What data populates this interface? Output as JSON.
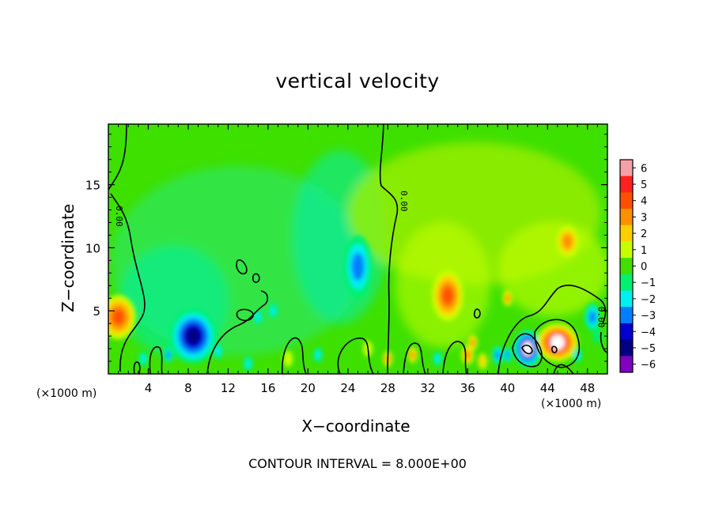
{
  "chart_data": {
    "type": "heatmap",
    "title": "vertical velocity",
    "xlabel": "X−coordinate",
    "ylabel": "Z−coordinate",
    "x_unit_note": "(×1000 m)",
    "x_unit_note_right": "(×1000 m)",
    "contour_note": "CONTOUR INTERVAL = 8.000E+00",
    "xlim": [
      0,
      50
    ],
    "ylim": [
      0,
      19.8
    ],
    "x_ticks": [
      "4",
      "8",
      "12",
      "16",
      "20",
      "24",
      "28",
      "32",
      "36",
      "40",
      "44",
      "48"
    ],
    "x_tick_values": [
      4,
      8,
      12,
      16,
      20,
      24,
      28,
      32,
      36,
      40,
      44,
      48
    ],
    "y_ticks": [
      "5",
      "10",
      "15"
    ],
    "y_tick_values": [
      5,
      10,
      15
    ],
    "contour_labels": [
      "0.00",
      "0.00",
      "0.00"
    ],
    "colorbar": {
      "ticks": [
        "6",
        "5",
        "4",
        "3",
        "2",
        "1",
        "0",
        "−1",
        "−2",
        "−3",
        "−4",
        "−5",
        "−6"
      ],
      "values": [
        6,
        5,
        4,
        3,
        2,
        1,
        0,
        -1,
        -2,
        -3,
        -4,
        -5,
        -6
      ],
      "colors": [
        "#f4a0a8",
        "#ff2020",
        "#ff5000",
        "#ff9000",
        "#ffd000",
        "#c8ff00",
        "#40e000",
        "#00f070",
        "#00f0f0",
        "#0080ff",
        "#0000d0",
        "#000080",
        "#8000c0"
      ]
    },
    "features": [
      {
        "x": 1,
        "z": 4.5,
        "value": 3.5
      },
      {
        "x": 8.5,
        "z": 3,
        "value": -4.5
      },
      {
        "x": 25,
        "z": 8.5,
        "value": -2.5
      },
      {
        "x": 34,
        "z": 6.2,
        "value": 4.2
      },
      {
        "x": 42,
        "z": 2,
        "value": -6
      },
      {
        "x": 45,
        "z": 2.5,
        "value": 6
      },
      {
        "x": 46,
        "z": 10.5,
        "value": 3
      },
      {
        "x": 48.5,
        "z": 4.5,
        "value": -2.5
      },
      {
        "x": 36,
        "z": 1.5,
        "value": 3
      },
      {
        "x": 39,
        "z": 1.5,
        "value": -3
      }
    ]
  }
}
